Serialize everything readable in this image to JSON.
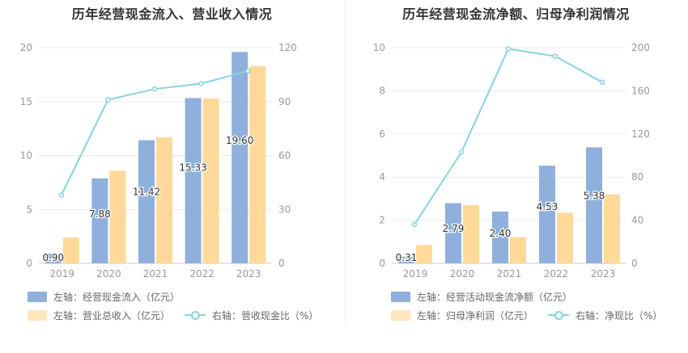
{
  "colors": {
    "bar_primary": "#8fb0dc",
    "bar_secondary": "#ffd99a",
    "line": "#8ad3dc",
    "axis_text": "#999999",
    "grid": "#e8eaef"
  },
  "chart_data": [
    {
      "type": "bar",
      "title": "历年经营现金流入、营业收入情况",
      "categories": [
        "2019",
        "2020",
        "2021",
        "2022",
        "2023"
      ],
      "ylim_left": [
        0,
        20
      ],
      "yticks_left": [
        0,
        5,
        10,
        15,
        20
      ],
      "ylim_right": [
        0,
        120
      ],
      "yticks_right": [
        0,
        30,
        60,
        90,
        120
      ],
      "series": [
        {
          "name": "左轴：经营现金流入（亿元）",
          "axis": "left",
          "type": "bar",
          "values": [
            0.9,
            7.88,
            11.42,
            15.33,
            19.6
          ],
          "labels": [
            "0.90",
            "7.88",
            "11.42",
            "15.33",
            "19.60"
          ]
        },
        {
          "name": "左轴：营业总收入（亿元）",
          "axis": "left",
          "type": "bar",
          "values": [
            2.4,
            8.6,
            11.7,
            15.3,
            18.3
          ]
        },
        {
          "name": "右轴：营收现金比（%）",
          "axis": "right",
          "type": "line",
          "values": [
            38,
            91,
            97,
            100,
            107
          ]
        }
      ],
      "legend_position": "bottom",
      "grid": true
    },
    {
      "type": "bar",
      "title": "历年经营现金流净额、归母净利润情况",
      "categories": [
        "2019",
        "2020",
        "2021",
        "2022",
        "2023"
      ],
      "ylim_left": [
        0,
        10
      ],
      "yticks_left": [
        0,
        2,
        4,
        6,
        8,
        10
      ],
      "ylim_right": [
        0,
        200
      ],
      "yticks_right": [
        0,
        40,
        80,
        120,
        160,
        200
      ],
      "series": [
        {
          "name": "左轴：经营活动现金流净额（亿元）",
          "axis": "left",
          "type": "bar",
          "values": [
            0.31,
            2.79,
            2.4,
            4.53,
            5.38
          ],
          "labels": [
            "0.31",
            "2.79",
            "2.40",
            "4.53",
            "5.38"
          ]
        },
        {
          "name": "左轴：归母净利润（亿元）",
          "axis": "left",
          "type": "bar",
          "values": [
            0.85,
            2.7,
            1.22,
            2.35,
            3.2
          ]
        },
        {
          "name": "右轴：净现比（%）",
          "axis": "right",
          "type": "line",
          "values": [
            36,
            103,
            199,
            192,
            168
          ]
        }
      ],
      "legend_position": "bottom",
      "grid": true
    }
  ]
}
